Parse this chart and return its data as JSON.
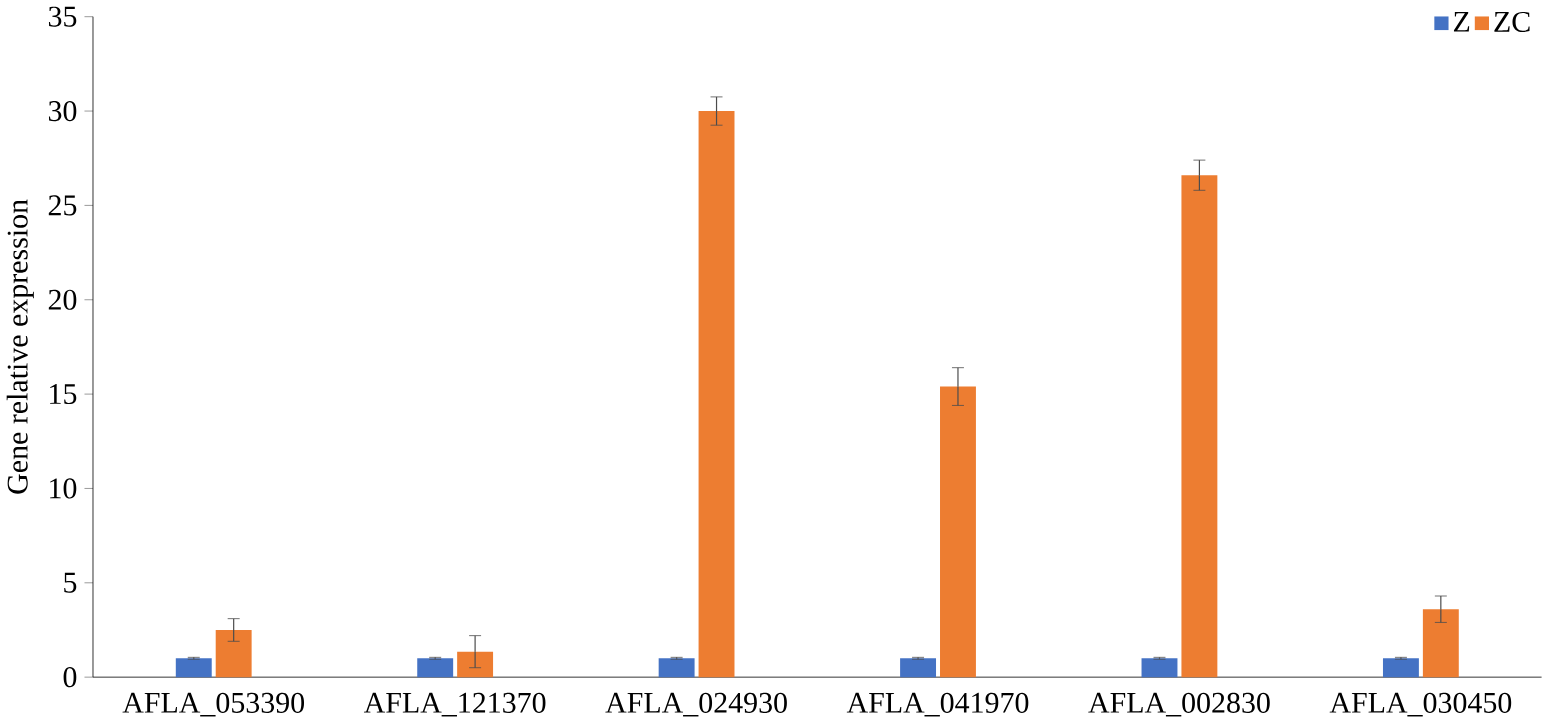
{
  "chart_data": {
    "type": "bar",
    "ylabel": "Gene relative expression",
    "categories": [
      "AFLA_053390",
      "AFLA_121370",
      "AFLA_024930",
      "AFLA_041970",
      "AFLA_002830",
      "AFLA_030450"
    ],
    "series": [
      {
        "name": "Z",
        "color": "#4472c4",
        "values": [
          1.0,
          1.0,
          1.0,
          1.0,
          1.0,
          1.0
        ],
        "errors": [
          0.05,
          0.05,
          0.05,
          0.05,
          0.05,
          0.05
        ]
      },
      {
        "name": "ZC",
        "color": "#ed7d31",
        "values": [
          2.5,
          1.35,
          30.0,
          15.4,
          26.6,
          3.6
        ],
        "errors": [
          0.6,
          0.85,
          0.75,
          1.0,
          0.8,
          0.7
        ]
      }
    ],
    "ylim": [
      0,
      35
    ],
    "yticks": [
      0,
      5,
      10,
      15,
      20,
      25,
      30,
      35
    ],
    "grid": false,
    "legend": "top right"
  }
}
